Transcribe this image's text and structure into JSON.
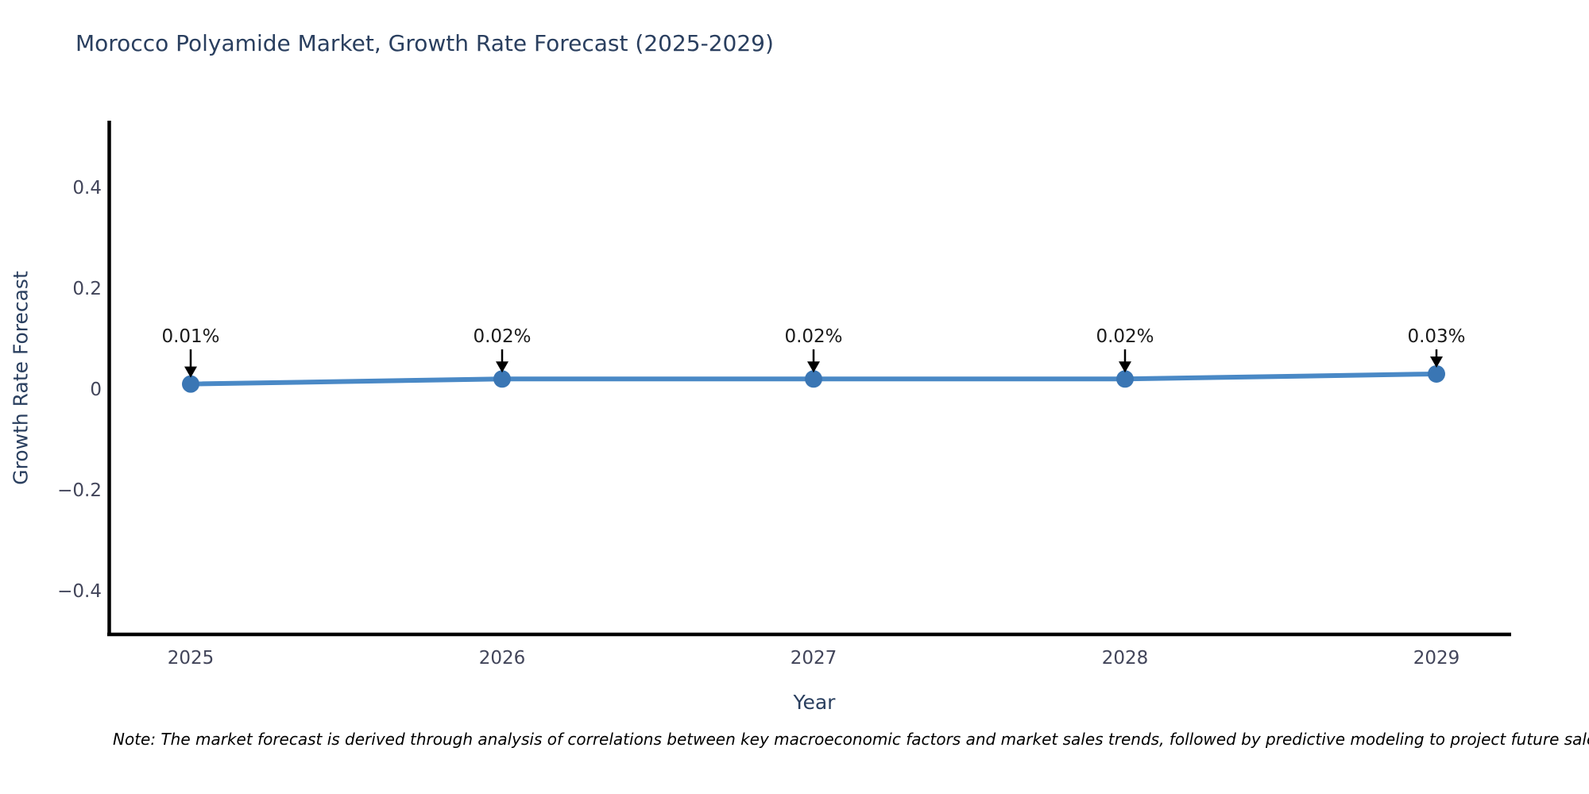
{
  "figure": {
    "note": "Note: The market forecast is derived through analysis of correlations between key macroeconomic factors and market sales trends, followed by predictive modeling to project future sales."
  },
  "chart_data": {
    "type": "line",
    "title": "Morocco Polyamide Market, Growth Rate Forecast (2025-2029)",
    "xlabel": "Year",
    "ylabel": "Growth Rate Forecast",
    "categories": [
      "2025",
      "2026",
      "2027",
      "2028",
      "2029"
    ],
    "series": [
      {
        "name": "Growth Rate Forecast",
        "values": [
          0.01,
          0.02,
          0.02,
          0.02,
          0.03
        ]
      }
    ],
    "point_labels": [
      "0.01%",
      "0.02%",
      "0.02%",
      "0.02%",
      "0.03%"
    ],
    "yticks": {
      "labels": [
        "0.4",
        "0.2",
        "0",
        "−0.2",
        "−0.4"
      ],
      "values": [
        0.4,
        0.2,
        0,
        -0.2,
        -0.4
      ]
    },
    "ylim": [
      -0.49,
      0.53
    ],
    "grid": false,
    "legend": "none",
    "annotation_arrows": "black down arrows pointing to each marker"
  },
  "colors": {
    "line": "#4a89c6",
    "marker": "#3a76b4",
    "axis_spine": "#000000",
    "title_text": "#2a3f5f",
    "tick_text": "#42455a",
    "annotation_text": "#1a1a1a",
    "background": "#ffffff"
  }
}
